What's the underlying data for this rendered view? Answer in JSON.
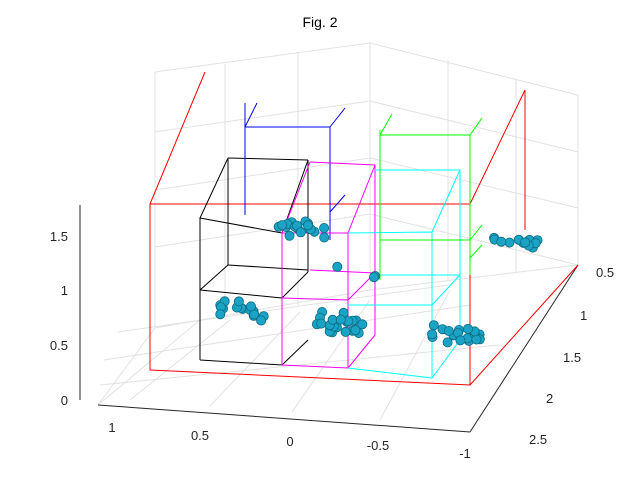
{
  "chart_data": {
    "type": "scatter",
    "projection": "3d",
    "title": "Fig. 2",
    "grid": true,
    "axes": {
      "x": {
        "ticks": [
          "1",
          "0.5",
          "0",
          "-0.5",
          "-1"
        ]
      },
      "y": {
        "ticks": [
          "0.5",
          "1",
          "1.5",
          "2",
          "2.5"
        ]
      },
      "z": {
        "ticks": [
          "0",
          "0.5",
          "1",
          "1.5"
        ]
      }
    },
    "boxes": [
      {
        "color": "#ff0000",
        "label": "outer"
      },
      {
        "color": "#000000",
        "label": "box-black"
      },
      {
        "color": "#0000ff",
        "label": "box-blue"
      },
      {
        "color": "#ff00ff",
        "label": "box-magenta"
      },
      {
        "color": "#00ffff",
        "label": "box-cyan"
      },
      {
        "color": "#00ff00",
        "label": "box-green"
      }
    ],
    "marker_color": "#1aa3c4",
    "clusters": [
      {
        "x": 0.35,
        "y": 0.9,
        "z": 1.2,
        "count": 18
      },
      {
        "x": 0.75,
        "y": 1.0,
        "z": 0.45,
        "count": 16
      },
      {
        "x": 0.0,
        "y": 1.05,
        "z": 0.9,
        "count": 3
      },
      {
        "x": 0.05,
        "y": 1.15,
        "z": 0.45,
        "count": 22
      },
      {
        "x": -0.75,
        "y": 1.25,
        "z": 0.45,
        "count": 18
      },
      {
        "x": -1.1,
        "y": 0.3,
        "z": 1.1,
        "count": 12
      }
    ]
  }
}
